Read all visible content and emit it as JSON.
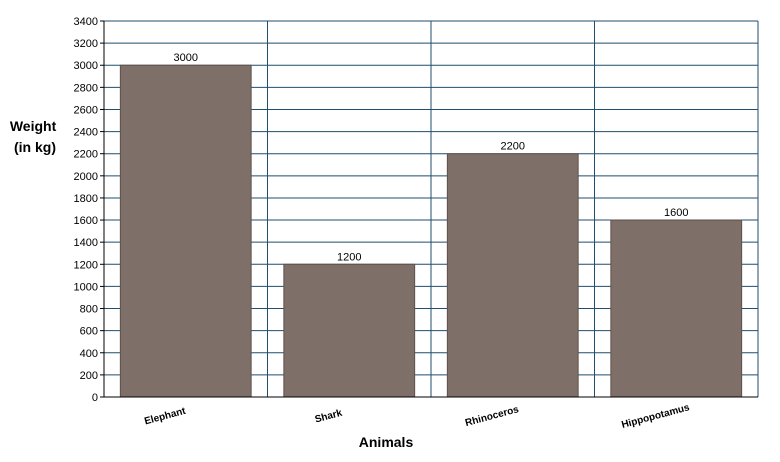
{
  "chart_data": {
    "type": "bar",
    "categories": [
      "Elephant",
      "Shark",
      "Rhinoceros",
      "Hippopotamus"
    ],
    "values": [
      3000,
      1200,
      2200,
      1600
    ],
    "data_labels": [
      "3000",
      "1200",
      "2200",
      "1600"
    ],
    "title": "",
    "xlabel": "Animals",
    "ylabel_lines": [
      "Weight",
      "(in kg)"
    ],
    "ylim": [
      0,
      3400
    ],
    "ytick_step": 200,
    "grid": true,
    "legend": "none",
    "colors": {
      "bar": "#7f6f69",
      "bar_border": "#5f504a",
      "grid": "#1f4e6e",
      "axis": "#000000"
    }
  }
}
